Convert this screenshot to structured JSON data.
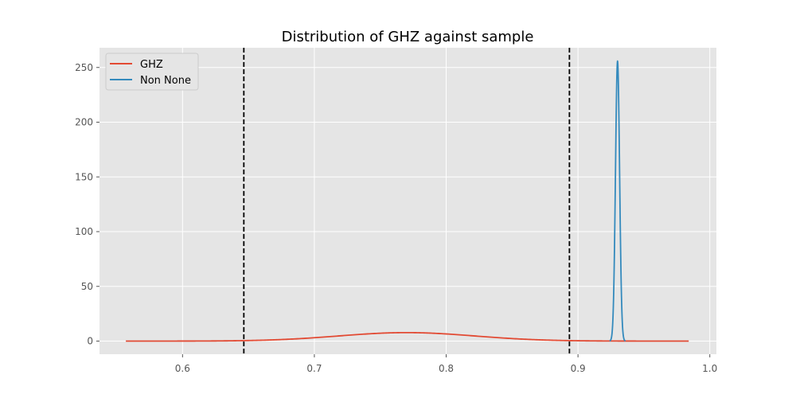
{
  "chart_data": {
    "type": "line",
    "title": "Distribution of GHZ against sample",
    "xlabel": "",
    "ylabel": "",
    "xlim": [
      0.537,
      1.005
    ],
    "ylim": [
      -12,
      268
    ],
    "xticks": [
      0.6,
      0.7,
      0.8,
      0.9,
      1.0
    ],
    "xtick_labels": [
      "0.6",
      "0.7",
      "0.8",
      "0.9",
      "1.0"
    ],
    "yticks": [
      0,
      50,
      100,
      150,
      200,
      250
    ],
    "ytick_labels": [
      "0",
      "50",
      "100",
      "150",
      "200",
      "250"
    ],
    "grid": true,
    "legend_position": "top-left",
    "series": [
      {
        "name": "GHZ",
        "color": "#E24A33",
        "x_range": [
          0.557,
          0.984
        ],
        "distribution": {
          "mean": 0.77,
          "sd": 0.0515
        }
      },
      {
        "name": "Non None",
        "color": "#348ABD",
        "x_range": [
          0.924,
          0.936
        ],
        "distribution": {
          "mean": 0.93,
          "sd": 0.00156
        }
      }
    ],
    "vlines": [
      {
        "x": 0.6465,
        "style": "dashed",
        "color": "#000000"
      },
      {
        "x": 0.8935,
        "style": "dashed",
        "color": "#000000"
      }
    ]
  }
}
